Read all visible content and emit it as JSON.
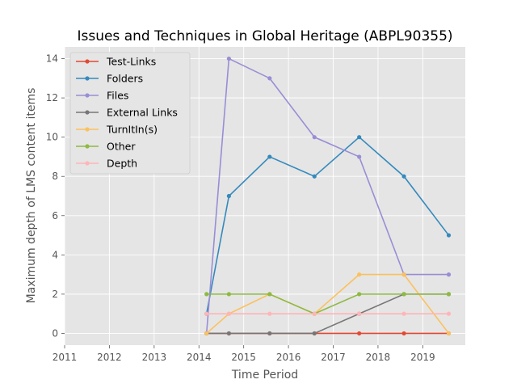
{
  "chart_data": {
    "type": "line",
    "title": "Issues and Techniques in Global Heritage (ABPL90355)",
    "xlabel": "Time Period",
    "ylabel": "Maximum depth of LMS content items",
    "xlim": [
      2011,
      2019.95
    ],
    "ylim": [
      -0.6,
      14.6
    ],
    "xticks": [
      "2011",
      "2012",
      "2013",
      "2014",
      "2015",
      "2016",
      "2017",
      "2018",
      "2019"
    ],
    "yticks": [
      "0",
      "2",
      "4",
      "6",
      "8",
      "10",
      "12",
      "14"
    ],
    "grid": true,
    "legend_position": "upper-left",
    "x": [
      2014.17,
      2014.67,
      2015.58,
      2016.58,
      2017.58,
      2018.58,
      2019.58
    ],
    "series": [
      {
        "name": "Test-Links",
        "color": "#E24A33",
        "values": [
          0,
          0,
          0,
          0,
          0,
          0,
          0
        ]
      },
      {
        "name": "Folders",
        "color": "#348ABD",
        "values": [
          1,
          7,
          9,
          8,
          10,
          8,
          5
        ]
      },
      {
        "name": "Files",
        "color": "#988ED5",
        "values": [
          0,
          14,
          13,
          10,
          9,
          3,
          3
        ]
      },
      {
        "name": "External Links",
        "color": "#777777",
        "values": [
          0,
          0,
          0,
          0,
          1,
          2,
          2
        ]
      },
      {
        "name": "TurnItIn(s)",
        "color": "#FBC15E",
        "values": [
          0,
          1,
          2,
          1,
          3,
          3,
          0
        ]
      },
      {
        "name": "Other",
        "color": "#8EBA42",
        "values": [
          2,
          2,
          2,
          1,
          2,
          2,
          2
        ]
      },
      {
        "name": "Depth",
        "color": "#FFB5B8",
        "values": [
          1,
          1,
          1,
          1,
          1,
          1,
          1
        ]
      }
    ]
  }
}
